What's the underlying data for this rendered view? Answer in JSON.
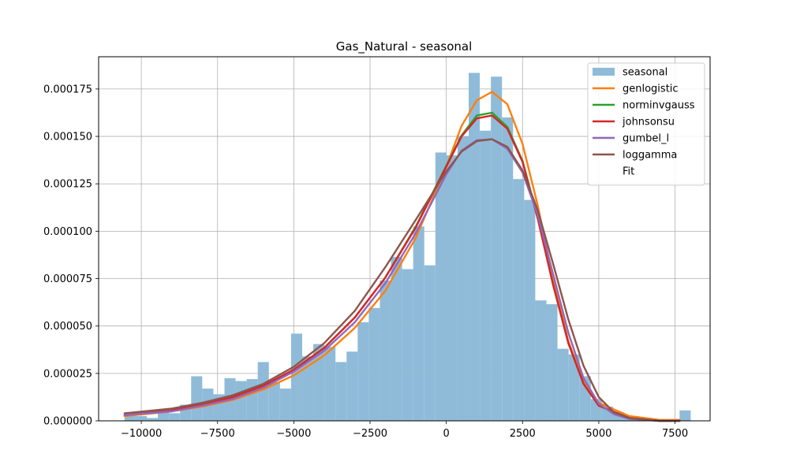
{
  "chart_data": {
    "type": "histogram",
    "title": "Gas_Natural - seasonal",
    "xlabel": "",
    "ylabel": "",
    "xlim": [
      -11400,
      8650
    ],
    "ylim": [
      0,
      0.000192
    ],
    "grid": true,
    "legend_position": "top-right",
    "x_ticks": [
      -10000,
      -7500,
      -5000,
      -2500,
      0,
      2500,
      5000,
      7500
    ],
    "x_tick_labels": [
      "−10000",
      "−7500",
      "−5000",
      "−2500",
      "0",
      "2500",
      "5000",
      "7500"
    ],
    "y_ticks": [
      0,
      2.5e-05,
      5e-05,
      7.5e-05,
      0.0001,
      0.000125,
      0.00015,
      0.000175
    ],
    "y_tick_labels": [
      "0.000000",
      "0.000025",
      "0.000050",
      "0.000075",
      "0.000100",
      "0.000125",
      "0.000150",
      "0.000175"
    ],
    "histogram": {
      "name": "seasonal",
      "color": "#8fbbd9",
      "bin_start": -10550,
      "bin_width": 364,
      "densities": [
        2.5e-06,
        2.5e-06,
        1.5e-06,
        5.5e-06,
        4e-06,
        8.5e-06,
        2.35e-05,
        1.7e-05,
        1.4e-05,
        2.25e-05,
        2.1e-05,
        2.2e-05,
        3.1e-05,
        2.05e-05,
        1.7e-05,
        4.6e-05,
        3.4e-05,
        4.05e-05,
        3.9e-05,
        3.1e-05,
        3.65e-05,
        5.2e-05,
        5.95e-05,
        7.4e-05,
        8.65e-05,
        8e-05,
        0.0001025,
        8.2e-05,
        0.0001415,
        0.00014,
        0.00015,
        0.0001835,
        0.000153,
        0.0001815,
        0.00016,
        0.0001275,
        0.0001165,
        6.35e-05,
        6.15e-05,
        3.8e-05,
        3.5e-05,
        2.35e-05,
        1.15e-05,
        7.5e-06,
        4.5e-06,
        1.5e-06,
        5e-07,
        0.0,
        0.0,
        0.0,
        5.5e-06
      ]
    },
    "series": [
      {
        "name": "genlogistic",
        "color": "#ff7f0e",
        "x": [
          -10550,
          -9000,
          -8000,
          -7000,
          -6000,
          -5000,
          -4000,
          -3000,
          -2000,
          -1000,
          0,
          500,
          1000,
          1500,
          2000,
          2500,
          3000,
          3500,
          4000,
          4500,
          5000,
          6000,
          7000,
          7650
        ],
        "y": [
          2.5e-06,
          5e-06,
          7.5e-06,
          1.1e-05,
          1.65e-05,
          2.4e-05,
          3.45e-05,
          4.9e-05,
          6.85e-05,
          9.65e-05,
          0.000134,
          0.0001555,
          0.000169,
          0.0001735,
          0.000167,
          0.000146,
          0.0001135,
          7.5e-05,
          4.2e-05,
          2.05e-05,
          9.5e-06,
          2.5e-06,
          5e-07,
          5e-07
        ]
      },
      {
        "name": "norminvgauss",
        "color": "#2ca02c",
        "x": [
          -10550,
          -9000,
          -8000,
          -7000,
          -6000,
          -5000,
          -4000,
          -3000,
          -2000,
          -1000,
          0,
          500,
          1000,
          1500,
          2000,
          2500,
          3000,
          3500,
          4000,
          4500,
          5000,
          6000,
          7000,
          7650
        ],
        "y": [
          3e-06,
          5.5e-06,
          8.5e-06,
          1.25e-05,
          1.85e-05,
          2.7e-05,
          3.85e-05,
          5.45e-05,
          7.55e-05,
          0.0001025,
          0.0001345,
          0.0001505,
          0.000161,
          0.0001625,
          0.000155,
          0.000137,
          0.000107,
          7.2e-05,
          4.1e-05,
          1.95e-05,
          8e-06,
          1.5e-06,
          0.0,
          0.0
        ]
      },
      {
        "name": "johnsonsu",
        "color": "#d62728",
        "x": [
          -10550,
          -9000,
          -8000,
          -7000,
          -6000,
          -5000,
          -4000,
          -3000,
          -2000,
          -1000,
          0,
          500,
          1000,
          1500,
          2000,
          2500,
          3000,
          3500,
          4000,
          4500,
          5000,
          6000,
          7000,
          7650
        ],
        "y": [
          3e-06,
          5.5e-06,
          8.5e-06,
          1.25e-05,
          1.85e-05,
          2.7e-05,
          3.85e-05,
          5.45e-05,
          7.55e-05,
          0.000102,
          0.000134,
          0.00015,
          0.0001595,
          0.000161,
          0.000154,
          0.0001365,
          0.0001065,
          7.2e-05,
          4.1e-05,
          1.95e-05,
          8e-06,
          1.5e-06,
          0.0,
          0.0
        ]
      },
      {
        "name": "gumbel_l",
        "color": "#9467bd",
        "x": [
          -10550,
          -9000,
          -8000,
          -7000,
          -6000,
          -5000,
          -4000,
          -3000,
          -2000,
          -1000,
          0,
          500,
          1000,
          1500,
          2000,
          2500,
          3000,
          3500,
          4000,
          4500,
          5000,
          5500,
          6000,
          7000,
          7650
        ],
        "y": [
          3e-06,
          5e-06,
          8e-06,
          1.15e-05,
          1.75e-05,
          2.6e-05,
          3.7e-05,
          5.2e-05,
          7.25e-05,
          9.9e-05,
          0.00013,
          0.0001425,
          0.000148,
          0.0001485,
          0.0001435,
          0.000131,
          0.0001085,
          7.75e-05,
          4.65e-05,
          2.25e-05,
          9e-06,
          3.5e-06,
          1e-06,
          0.0,
          0.0
        ]
      },
      {
        "name": "loggamma",
        "color": "#8c564b",
        "x": [
          -10550,
          -9000,
          -8000,
          -7000,
          -6000,
          -5000,
          -4000,
          -3000,
          -2000,
          -1000,
          0,
          500,
          1000,
          1500,
          2000,
          2500,
          3000,
          3500,
          4000,
          4500,
          5000,
          5500,
          6000,
          7000,
          7650
        ],
        "y": [
          4e-06,
          6.5e-06,
          9.5e-06,
          1.35e-05,
          1.95e-05,
          2.85e-05,
          4.1e-05,
          5.8e-05,
          8.1e-05,
          0.000106,
          0.0001315,
          0.000142,
          0.0001475,
          0.0001485,
          0.0001445,
          0.000132,
          0.000111,
          8.3e-05,
          5.35e-05,
          2.9e-05,
          1.25e-05,
          4.5e-06,
          1.5e-06,
          0.0,
          0.0
        ]
      }
    ],
    "legend_entries": [
      {
        "label": "seasonal",
        "kind": "patch",
        "color": "#8fbbd9"
      },
      {
        "label": "genlogistic",
        "kind": "line",
        "color": "#ff7f0e"
      },
      {
        "label": "norminvgauss",
        "kind": "line",
        "color": "#2ca02c"
      },
      {
        "label": "johnsonsu",
        "kind": "line",
        "color": "#d62728"
      },
      {
        "label": "gumbel_l",
        "kind": "line",
        "color": "#9467bd"
      },
      {
        "label": "loggamma",
        "kind": "line",
        "color": "#8c564b"
      },
      {
        "label": "Fit",
        "kind": "none",
        "color": ""
      }
    ]
  }
}
